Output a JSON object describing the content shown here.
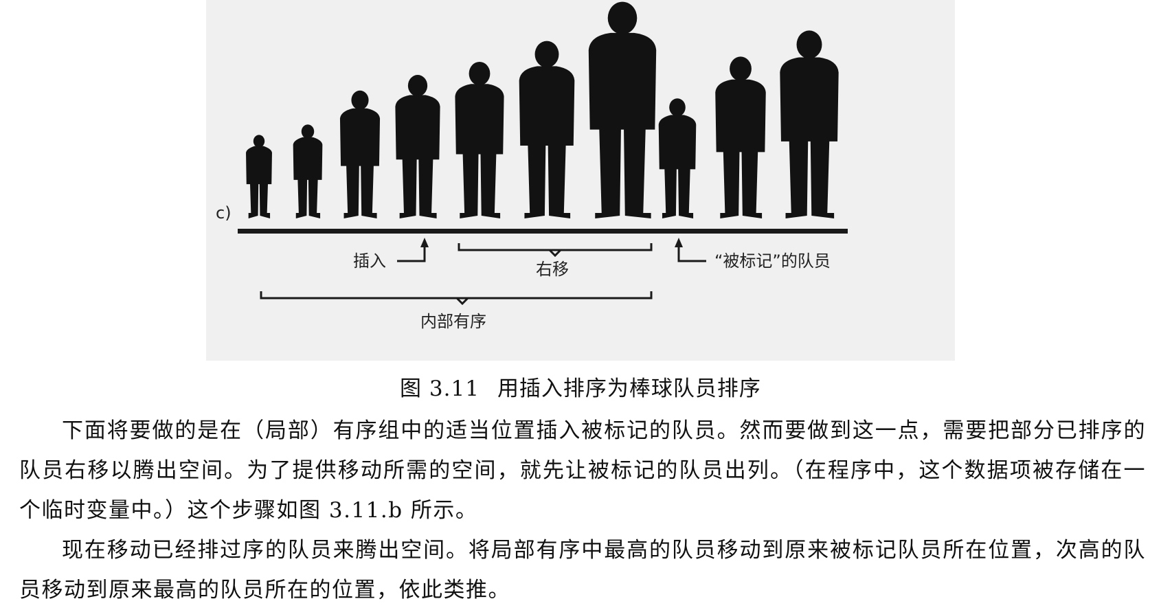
{
  "figure": {
    "panel_label": "c)",
    "annotations": {
      "insert": "插入",
      "shift_right": "右移",
      "marked_player": "“被标记”的队员",
      "partially_sorted": "内部有序"
    },
    "players": [
      {
        "height": 0.32
      },
      {
        "height": 0.36
      },
      {
        "height": 0.49
      },
      {
        "height": 0.55
      },
      {
        "height": 0.6
      },
      {
        "height": 0.68
      },
      {
        "height": 0.83
      },
      {
        "height": 0.46
      },
      {
        "height": 0.62
      },
      {
        "height": 0.72
      }
    ]
  },
  "caption": {
    "number": "图 3.11",
    "title": "用插入排序为棒球队员排序"
  },
  "paragraphs": [
    "下面将要做的是在（局部）有序组中的适当位置插入被标记的队员。然而要做到这一点，需要把部分已排序的队员右移以腾出空间。为了提供移动所需的空间，就先让被标记的队员出列。（在程序中，这个数据项被存储在一个临时变量中。）这个步骤如图 3.11.b 所示。",
    "现在移动已经排过序的队员来腾出空间。将局部有序中最高的队员移动到原来被标记队员所在位置，次高的队员移动到原来最高的队员所在的位置，依此类推。"
  ]
}
